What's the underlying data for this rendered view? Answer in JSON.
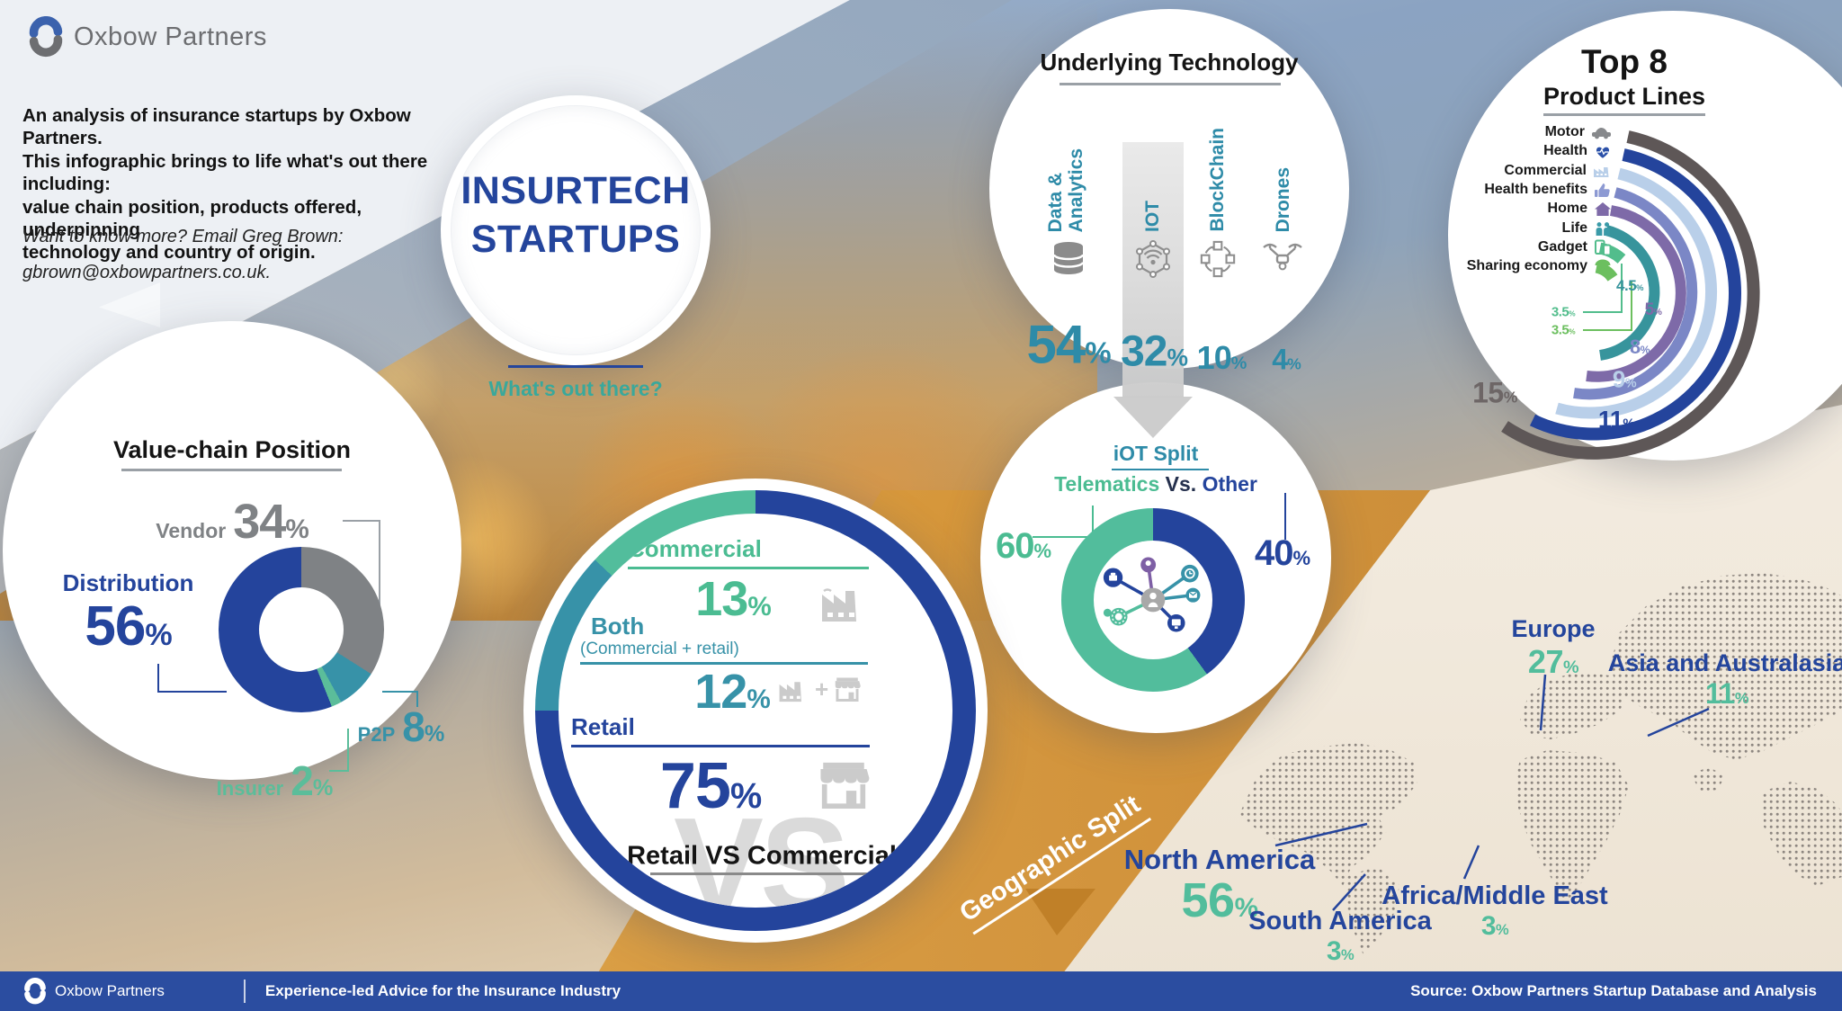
{
  "header": {
    "brand": "Oxbow Partners",
    "intro": "An analysis of insurance startups by Oxbow Partners.\nThis infographic brings to life what's out there including:\nvalue chain position, products offered, underpinning\ntechnology and country of origin.",
    "contact_line1": "Want to know more? Email Greg Brown:",
    "contact_line2": "gbrown@oxbowpartners.co.uk."
  },
  "title_circle": {
    "line1": "INSURTECH",
    "line2": "STARTUPS",
    "subtitle": "What's out there?"
  },
  "underlying_technology": {
    "title": "Underlying Technology",
    "items": [
      {
        "label": "Data &\nAnalytics",
        "icon": "database-icon",
        "pct": "54%"
      },
      {
        "label": "IOT",
        "icon": "iot-network-icon",
        "pct": "32%"
      },
      {
        "label": "BlockChain",
        "icon": "blockchain-icon",
        "pct": "10%"
      },
      {
        "label": "Drones",
        "icon": "drone-icon",
        "pct": "4%"
      }
    ]
  },
  "iot_split": {
    "title": "iOT Split",
    "legend_left": "Telematics",
    "legend_mid": "Vs.",
    "legend_right": "Other",
    "telematics_pct": "60%",
    "other_pct": "40%"
  },
  "top_product_lines": {
    "title": "Top 8",
    "subtitle": "Product Lines",
    "items": [
      {
        "label": "Motor",
        "icon": "car-icon",
        "pct": "15%"
      },
      {
        "label": "Health",
        "icon": "heart-pulse-icon",
        "pct": "11%"
      },
      {
        "label": "Commercial",
        "icon": "factory-icon",
        "pct": "9%"
      },
      {
        "label": "Health benefits",
        "icon": "thumbs-up-icon",
        "pct": "8%"
      },
      {
        "label": "Home",
        "icon": "house-icon",
        "pct": "5%"
      },
      {
        "label": "Life",
        "icon": "family-icon",
        "pct": "4.5%"
      },
      {
        "label": "Gadget",
        "icon": "devices-icon",
        "pct": "3.5%"
      },
      {
        "label": "Sharing economy",
        "icon": "umbrella-people-icon",
        "pct": "3.5%"
      }
    ]
  },
  "value_chain": {
    "title": "Value-chain Position",
    "segments": [
      {
        "label": "Vendor",
        "pct": "34%",
        "color": "#7f8285"
      },
      {
        "label": "Distribution",
        "pct": "56%",
        "color": "#24449c"
      },
      {
        "label": "P2P",
        "pct": "8%",
        "color": "#3792a8"
      },
      {
        "label": "Insurer",
        "pct": "2%",
        "color": "#5bbd9a"
      }
    ]
  },
  "retail_commercial": {
    "title": "Retail VS Commercial",
    "watermark": "VS",
    "rows": [
      {
        "label": "Commercial",
        "sub": "",
        "pct": "13%"
      },
      {
        "label": "Both",
        "sub": "(Commercial + retail)",
        "pct": "12%"
      },
      {
        "label": "Retail",
        "sub": "",
        "pct": "75%"
      }
    ]
  },
  "geographic": {
    "banner": "Geographic Split",
    "regions": [
      {
        "name": "Europe",
        "pct": "27%"
      },
      {
        "name": "Asia and Australasia",
        "pct": "11%"
      },
      {
        "name": "North America",
        "pct": "56%"
      },
      {
        "name": "South America",
        "pct": "3%"
      },
      {
        "name": "Africa/Middle East",
        "pct": "3%"
      }
    ]
  },
  "footer": {
    "brand": "Oxbow Partners",
    "tagline": "Experience-led Advice for the Insurance Industry",
    "source": "Source: Oxbow Partners Start­up Database and Analysis"
  },
  "palette": {
    "teal": "#2e8ba8",
    "green": "#52bd9c",
    "dark_blue": "#24449c",
    "gray": "#7f8285",
    "light_blue": "#b9cfe9",
    "periwinkle": "#7b87c6",
    "purple": "#7e6aa8",
    "footer_blue": "#2b4da0",
    "orange": "#d99a3c"
  },
  "chart_data": [
    {
      "type": "bar",
      "title": "Underlying Technology",
      "categories": [
        "Data & Analytics",
        "IOT",
        "BlockChain",
        "Drones"
      ],
      "values": [
        54,
        32,
        10,
        4
      ],
      "unit": "%"
    },
    {
      "type": "pie",
      "title": "iOT Split — Telematics Vs. Other",
      "categories": [
        "Telematics",
        "Other"
      ],
      "values": [
        60,
        40
      ],
      "unit": "%",
      "colors": [
        "#52bd9c",
        "#24449c"
      ]
    },
    {
      "type": "bar",
      "title": "Top 8 Product Lines",
      "categories": [
        "Motor",
        "Health",
        "Commercial",
        "Health benefits",
        "Home",
        "Life",
        "Gadget",
        "Sharing economy"
      ],
      "values": [
        15,
        11,
        9,
        8,
        5,
        4.5,
        3.5,
        3.5
      ],
      "unit": "%",
      "colors": [
        "#5e5757",
        "#24449c",
        "#b9cfe9",
        "#7b87c6",
        "#7e6aa8",
        "#37949c",
        "#52bd8c",
        "#6cbf5f"
      ]
    },
    {
      "type": "pie",
      "title": "Value-chain Position",
      "categories": [
        "Distribution",
        "Vendor",
        "P2P",
        "Insurer"
      ],
      "values": [
        56,
        34,
        8,
        2
      ],
      "unit": "%",
      "colors": [
        "#24449c",
        "#7f8285",
        "#3792a8",
        "#5bbd9a"
      ]
    },
    {
      "type": "pie",
      "title": "Retail VS Commercial",
      "categories": [
        "Retail",
        "Commercial",
        "Both (Commercial + retail)"
      ],
      "values": [
        75,
        13,
        12
      ],
      "unit": "%",
      "colors": [
        "#24449c",
        "#52bd9c",
        "#3792a8"
      ]
    },
    {
      "type": "map",
      "title": "Geographic Split",
      "categories": [
        "North America",
        "Europe",
        "Asia and Australasia",
        "South America",
        "Africa/Middle East"
      ],
      "values": [
        56,
        27,
        11,
        3,
        3
      ],
      "unit": "%"
    }
  ]
}
